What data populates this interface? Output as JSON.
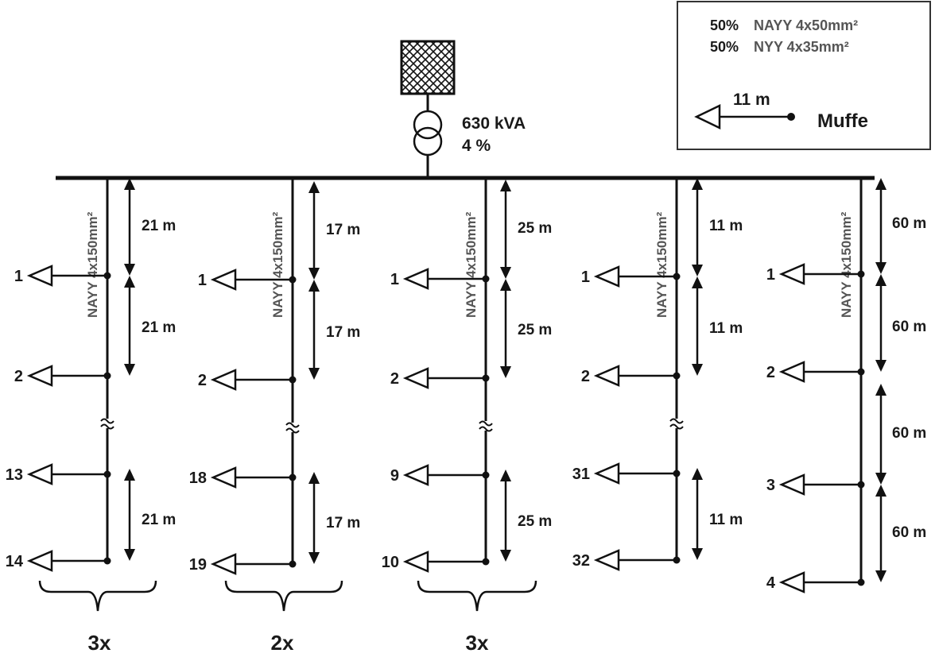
{
  "transformer": {
    "rating": "630 kVA",
    "impedance": "4 %"
  },
  "legend": {
    "line1_pct": "50%",
    "line1_cable": "NAYY 4x50mm²",
    "line2_pct": "50%",
    "line2_cable": "NYY 4x35mm²",
    "example_distance": "11  m",
    "joint_label": "Muffe"
  },
  "feeders": [
    {
      "cable": "NAYY 4x150mm²",
      "distances": [
        "21 m",
        "21 m",
        "21 m"
      ],
      "nodes": [
        "1",
        "2",
        "13",
        "14"
      ],
      "multiplier": "3x"
    },
    {
      "cable": "NAYY 4x150mm²",
      "distances": [
        "17 m",
        "17 m",
        "17 m"
      ],
      "nodes": [
        "1",
        "2",
        "18",
        "19"
      ],
      "multiplier": "2x"
    },
    {
      "cable": "NAYY 4x150mm²",
      "distances": [
        "25 m",
        "25 m",
        "25 m"
      ],
      "nodes": [
        "1",
        "2",
        "9",
        "10"
      ],
      "multiplier": "3x"
    },
    {
      "cable": "NAYY 4x150mm²",
      "distances": [
        "11 m",
        "11 m",
        "11 m"
      ],
      "nodes": [
        "1",
        "2",
        "31",
        "32"
      ],
      "multiplier": ""
    },
    {
      "cable": "NAYY 4x150mm²",
      "distances": [
        "60 m",
        "60 m",
        "60 m",
        "60 m"
      ],
      "nodes": [
        "1",
        "2",
        "3",
        "4"
      ],
      "multiplier": ""
    }
  ]
}
